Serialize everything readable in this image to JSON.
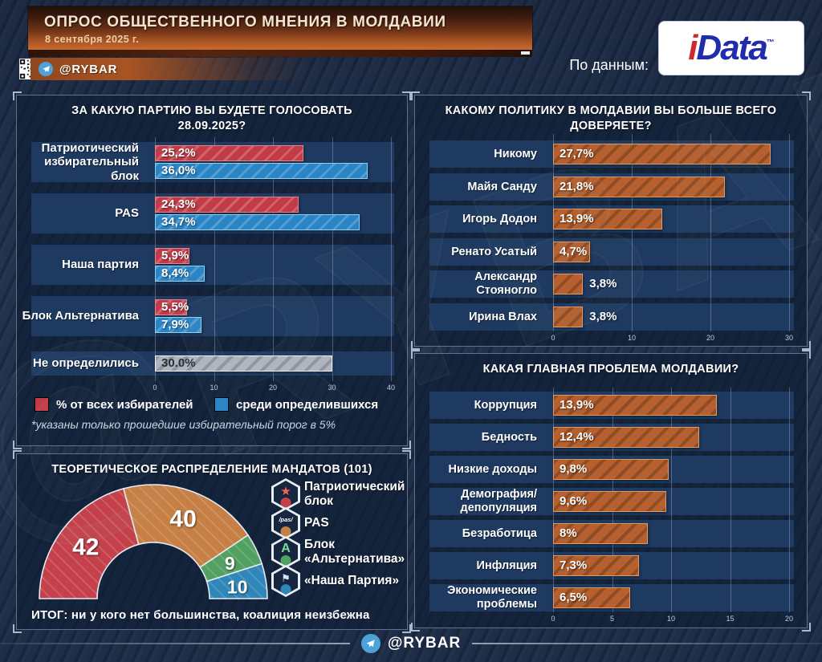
{
  "header": {
    "banner_title": "ОПРОС ОБЩЕСТВЕННОГО МНЕНИЯ В МОЛДАВИИ",
    "banner_date": "8 сентября 2025 г.",
    "channel_badge": "@RYBAR",
    "source_prefix": "По данным:",
    "source_brand_i": "i",
    "source_brand_rest": "Data",
    "source_tm": "™"
  },
  "watermark": "@RYBAR",
  "footer": {
    "channel": "@RYBAR"
  },
  "colors": {
    "background": "#22334f",
    "panel": "#14243c",
    "row_band": "#1e3a60",
    "red": "#c23c48",
    "blue": "#2a85c7",
    "gray": "#b0b5bd",
    "orange": "#b5602e",
    "donut_red": "#c4414b",
    "donut_orange": "#c67f44",
    "donut_green": "#52a062",
    "donut_blue": "#2f86b8",
    "idata_red": "#d22730",
    "idata_blue": "#202cab",
    "telegram_blue": "#4da3d9"
  },
  "chart_data": [
    {
      "id": "party_vote",
      "type": "bar",
      "orientation": "horizontal",
      "title_lines": [
        "ЗА КАКУЮ ПАРТИЮ ВЫ БУДЕТЕ ГОЛОСОВАТЬ",
        "28.09.2025?"
      ],
      "axis": {
        "ticks": [
          0,
          10,
          20,
          30,
          40
        ],
        "max": 40,
        "unit": "%"
      },
      "rows": [
        {
          "label_lines": [
            "Патриотический",
            "избирательный блок"
          ],
          "bars": [
            {
              "series": "% от всех избирателей",
              "value": 25.2,
              "label": "25,2%",
              "color_key": "red"
            },
            {
              "series": "среди определившихся",
              "value": 36.0,
              "label": "36,0%",
              "color_key": "blue"
            }
          ]
        },
        {
          "label_lines": [
            "PAS"
          ],
          "bars": [
            {
              "series": "% от всех избирателей",
              "value": 24.3,
              "label": "24,3%",
              "color_key": "red"
            },
            {
              "series": "среди определившихся",
              "value": 34.7,
              "label": "34,7%",
              "color_key": "blue"
            }
          ]
        },
        {
          "label_lines": [
            "Наша партия"
          ],
          "bars": [
            {
              "series": "% от всех избирателей",
              "value": 5.9,
              "label": "5,9%",
              "color_key": "red"
            },
            {
              "series": "среди определившихся",
              "value": 8.4,
              "label": "8,4%",
              "color_key": "blue"
            }
          ]
        },
        {
          "label_lines": [
            "Блок Альтернатива"
          ],
          "bars": [
            {
              "series": "% от всех избирателей",
              "value": 5.5,
              "label": "5,5%",
              "color_key": "red"
            },
            {
              "series": "среди определившихся",
              "value": 7.9,
              "label": "7,9%",
              "color_key": "blue"
            }
          ]
        },
        {
          "label_lines": [
            "Не определились"
          ],
          "bars": [
            {
              "series": "не определились",
              "value": 30.0,
              "label": "30.0%",
              "color_key": "gray",
              "dark_label": true
            }
          ]
        }
      ],
      "legend": [
        {
          "label": "% от всех избирателей",
          "color_key": "red"
        },
        {
          "label": "среди определившихся",
          "color_key": "blue"
        }
      ],
      "footnote": "*указаны только прошедшие избирательный порог в 5%"
    },
    {
      "id": "politicians",
      "type": "bar",
      "orientation": "horizontal",
      "title_lines": [
        "КАКОМУ ПОЛИТИКУ В МОЛДАВИИ ВЫ БОЛЬШЕ ВСЕГО",
        "ДОВЕРЯЕТЕ?"
      ],
      "axis": {
        "ticks": [
          0,
          10,
          20,
          30
        ],
        "max": 30,
        "unit": "%"
      },
      "rows": [
        {
          "label_lines": [
            "Никому"
          ],
          "bars": [
            {
              "value": 27.7,
              "label": "27,7%",
              "color_key": "orange"
            }
          ]
        },
        {
          "label_lines": [
            "Майя Санду"
          ],
          "bars": [
            {
              "value": 21.8,
              "label": "21,8%",
              "color_key": "orange"
            }
          ]
        },
        {
          "label_lines": [
            "Игорь Додон"
          ],
          "bars": [
            {
              "value": 13.9,
              "label": "13,9%",
              "color_key": "orange"
            }
          ]
        },
        {
          "label_lines": [
            "Ренато Усатый"
          ],
          "bars": [
            {
              "value": 4.7,
              "label": "4,7%",
              "color_key": "orange"
            }
          ]
        },
        {
          "label_lines": [
            "Александр Стояногло"
          ],
          "bars": [
            {
              "value": 3.8,
              "label": "3,8%",
              "color_key": "orange",
              "label_outside": true
            }
          ]
        },
        {
          "label_lines": [
            "Ирина Влах"
          ],
          "bars": [
            {
              "value": 3.8,
              "label": "3,8%",
              "color_key": "orange",
              "label_outside": true
            }
          ]
        }
      ]
    },
    {
      "id": "mandates",
      "type": "donut-half",
      "title_lines": [
        "ТЕОРЕТИЧЕСКОЕ РАСПРЕДЕЛЕНИЕ МАНДАТОВ (101)"
      ],
      "total": 101,
      "slices": [
        {
          "label": "Патриотический блок",
          "value": 42,
          "color_key": "donut_red"
        },
        {
          "label": "PAS",
          "value": 40,
          "color_key": "donut_orange"
        },
        {
          "label": "Блок «Альтернатива»",
          "value": 9,
          "color_key": "donut_green"
        },
        {
          "label": "«Наша Партия»",
          "value": 10,
          "color_key": "donut_blue"
        }
      ],
      "legend": [
        {
          "label_lines": [
            "Патриотический",
            "блок"
          ],
          "icon": "star",
          "color_key": "donut_red"
        },
        {
          "label_lines": [
            "PAS"
          ],
          "icon": "pas",
          "color_key": "donut_orange"
        },
        {
          "label_lines": [
            "Блок",
            "«Альтернатива»"
          ],
          "icon": "a",
          "color_key": "donut_green"
        },
        {
          "label_lines": [
            "«Наша Партия»"
          ],
          "icon": "flag",
          "color_key": "donut_blue"
        }
      ],
      "conclusion": "ИТОГ: ни у кого нет большинства, коалиция неизбежна"
    },
    {
      "id": "problems",
      "type": "bar",
      "orientation": "horizontal",
      "title_lines": [
        "КАКАЯ ГЛАВНАЯ ПРОБЛЕМА МОЛДАВИИ?"
      ],
      "axis": {
        "ticks": [
          0,
          5,
          10,
          15,
          20
        ],
        "max": 20,
        "unit": "%"
      },
      "rows": [
        {
          "label_lines": [
            "Коррупция"
          ],
          "bars": [
            {
              "value": 13.9,
              "label": "13,9%",
              "color_key": "orange"
            }
          ]
        },
        {
          "label_lines": [
            "Бедность"
          ],
          "bars": [
            {
              "value": 12.4,
              "label": "12,4%",
              "color_key": "orange"
            }
          ]
        },
        {
          "label_lines": [
            "Низкие доходы"
          ],
          "bars": [
            {
              "value": 9.8,
              "label": "9,8%",
              "color_key": "orange"
            }
          ]
        },
        {
          "label_lines": [
            "Демография/",
            "депопуляция"
          ],
          "bars": [
            {
              "value": 9.6,
              "label": "9,6%",
              "color_key": "orange"
            }
          ]
        },
        {
          "label_lines": [
            "Безработица"
          ],
          "bars": [
            {
              "value": 8,
              "label": "8%",
              "color_key": "orange"
            }
          ]
        },
        {
          "label_lines": [
            "Инфляция"
          ],
          "bars": [
            {
              "value": 7.3,
              "label": "7,3%",
              "color_key": "orange"
            }
          ]
        },
        {
          "label_lines": [
            "Экономические",
            "проблемы"
          ],
          "bars": [
            {
              "value": 6.5,
              "label": "6,5%",
              "color_key": "orange"
            }
          ]
        }
      ]
    }
  ]
}
